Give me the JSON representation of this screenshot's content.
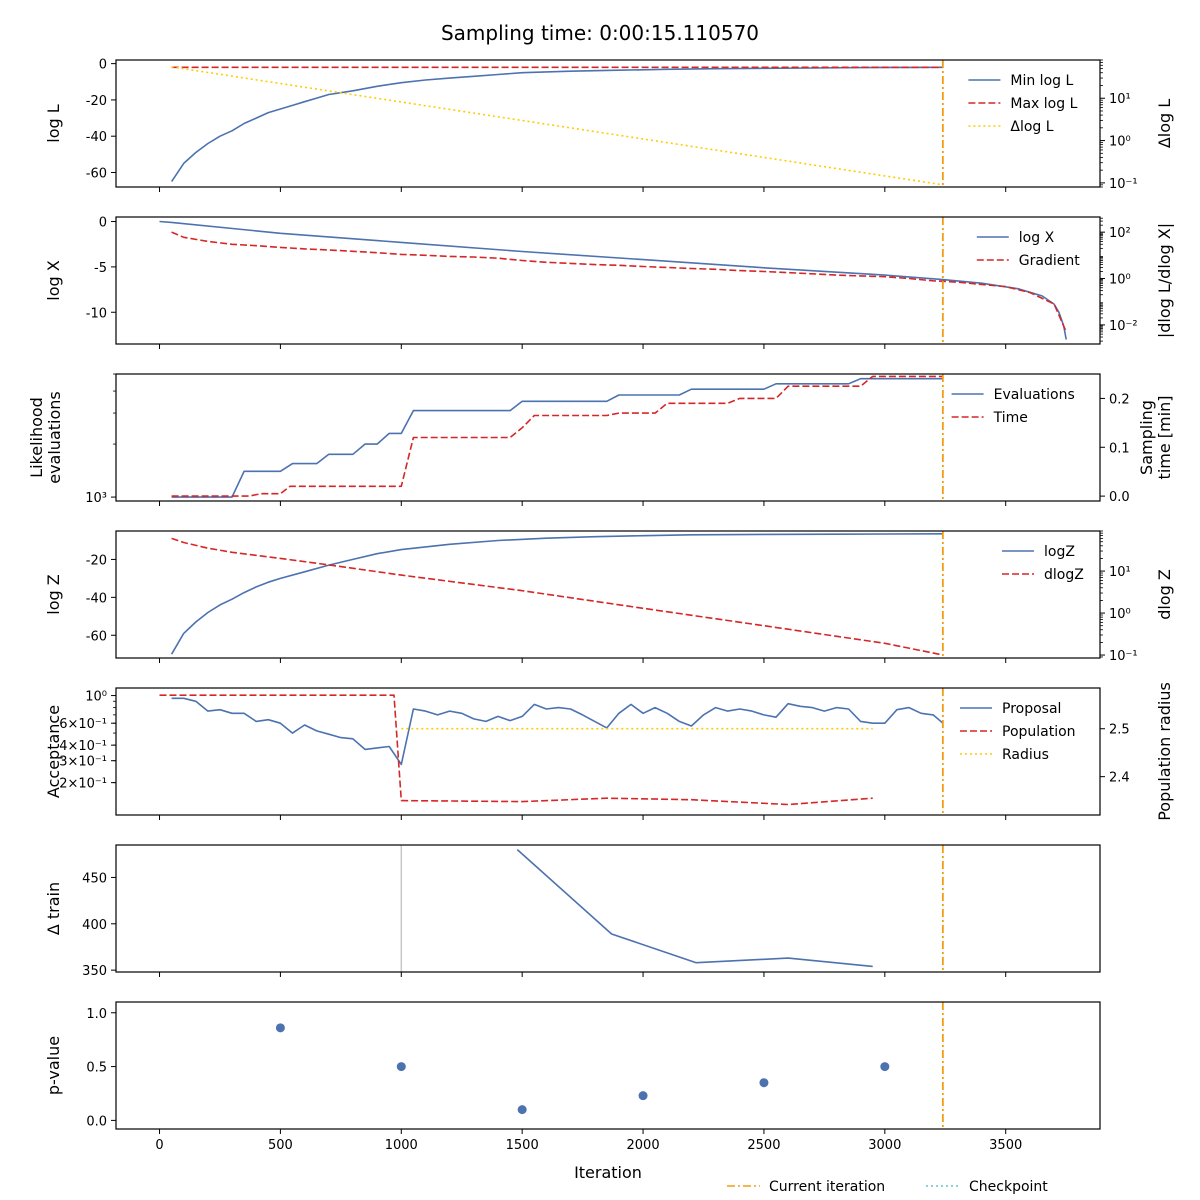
{
  "figure": {
    "title": "Sampling time: 0:00:15.110570",
    "xlabel": "Iteration",
    "xticks": [
      0,
      500,
      1000,
      1500,
      2000,
      2500,
      3000,
      3500
    ],
    "xlim": [
      -180,
      3890
    ],
    "current_iteration": 3240,
    "legend": [
      {
        "label": "Current iteration",
        "color": "#ff8c00",
        "style": "dashdot"
      },
      {
        "label": "Checkpoint",
        "color": "#66c2cc",
        "style": "dotted"
      }
    ]
  },
  "colors": {
    "blue": "#4c72b0",
    "red": "#d62728",
    "gold": "#ffcc00",
    "orange": "#f39c12",
    "gray": "#c8c8c8"
  },
  "chart_data": [
    {
      "type": "line",
      "id": "logl",
      "ylabel": "log L",
      "ylim": [
        -68,
        2
      ],
      "yticks": [
        0,
        -20,
        -40,
        -60
      ],
      "ylabel_right": "Δlog L",
      "right_scale": "log",
      "right_ylim": [
        0.08,
        80
      ],
      "right_ticks": [
        {
          "v": 10,
          "label": "10¹"
        },
        {
          "v": 1,
          "label": "10⁰"
        },
        {
          "v": 0.1,
          "label": "10⁻¹"
        }
      ],
      "series": [
        {
          "name": "Min log L",
          "axis": "left",
          "style": "solid",
          "color": "#4c72b0",
          "x": [
            50,
            100,
            150,
            200,
            250,
            300,
            350,
            400,
            450,
            500,
            550,
            600,
            650,
            700,
            750,
            800,
            900,
            1000,
            1100,
            1200,
            1300,
            1400,
            1500,
            1700,
            1900,
            2100,
            2300,
            2500,
            2700,
            2900,
            3100,
            3240
          ],
          "y": [
            -65,
            -55,
            -49,
            -44,
            -40,
            -37,
            -33,
            -30,
            -27,
            -25,
            -23,
            -21,
            -19,
            -17,
            -16,
            -15,
            -12.5,
            -10.5,
            -9,
            -8,
            -7,
            -6,
            -5,
            -4.2,
            -3.6,
            -3.1,
            -2.8,
            -2.6,
            -2.4,
            -2.2,
            -2.1,
            -2.0
          ]
        },
        {
          "name": "Max log L",
          "axis": "left",
          "style": "dashed",
          "color": "#d62728",
          "x": [
            50,
            3240
          ],
          "y": [
            -2,
            -2
          ]
        },
        {
          "name": "Δlog L",
          "axis": "right",
          "style": "dotted",
          "color": "#ffcc00",
          "x": [
            50,
            3240
          ],
          "y": [
            55,
            0.09
          ]
        }
      ]
    },
    {
      "type": "line",
      "id": "logx",
      "ylabel": "log X",
      "ylim": [
        -13.5,
        0.5
      ],
      "yticks": [
        0,
        -5,
        -10
      ],
      "ylabel_right": "|dlog L/dlog X|",
      "right_scale": "log",
      "right_ylim": [
        0.0015,
        450
      ],
      "right_ticks": [
        {
          "v": 100,
          "label": "10²"
        },
        {
          "v": 1,
          "label": "10⁰"
        },
        {
          "v": 0.01,
          "label": "10⁻²"
        }
      ],
      "series": [
        {
          "name": "log X",
          "axis": "left",
          "style": "solid",
          "color": "#4c72b0",
          "x": [
            0,
            50,
            500,
            1000,
            1500,
            2000,
            2500,
            3000,
            3240,
            3400,
            3550,
            3650,
            3700,
            3720,
            3740,
            3750
          ],
          "y": [
            0,
            -0.1,
            -1.3,
            -2.3,
            -3.3,
            -4.2,
            -5.1,
            -5.9,
            -6.4,
            -6.8,
            -7.4,
            -8.2,
            -9.1,
            -10,
            -11.5,
            -13
          ]
        },
        {
          "name": "Gradient",
          "axis": "right",
          "style": "dashed",
          "color": "#d62728",
          "x": [
            50,
            100,
            200,
            300,
            400,
            500,
            600,
            700,
            800,
            900,
            1000,
            1100,
            1200,
            1300,
            1400,
            1500,
            1600,
            1700,
            1800,
            1900,
            2000,
            2100,
            2200,
            2300,
            2400,
            2500,
            2600,
            2700,
            2800,
            2900,
            3000,
            3100,
            3200,
            3300,
            3400,
            3500,
            3600,
            3700,
            3750
          ],
          "y": [
            100,
            60,
            40,
            30,
            26,
            22,
            19,
            17,
            15,
            13,
            11,
            10,
            9,
            8.5,
            7.5,
            6,
            5,
            4.5,
            4,
            3.7,
            3.3,
            3,
            2.7,
            2.5,
            2.2,
            2,
            1.8,
            1.6,
            1.4,
            1.3,
            1.2,
            1.0,
            0.8,
            0.7,
            0.55,
            0.45,
            0.25,
            0.08,
            0.005
          ]
        }
      ]
    },
    {
      "type": "line",
      "id": "evals",
      "ylabel": "Likelihood evaluations",
      "ylabel_lines": [
        "Likelihood",
        "evaluations"
      ],
      "scale": "log",
      "ylim": [
        950,
        5000
      ],
      "yticks": [
        {
          "v": 1000,
          "label": "10³"
        }
      ],
      "ylabel_right": "Sampling time [min]",
      "ylabel_right_lines": [
        "Sampling",
        "time [min]"
      ],
      "right_ylim": [
        -0.01,
        0.25
      ],
      "right_ticks": [
        {
          "v": 0.0,
          "label": "0.0"
        },
        {
          "v": 0.1,
          "label": "0.1"
        },
        {
          "v": 0.2,
          "label": "0.2"
        }
      ],
      "series": [
        {
          "name": "Evaluations",
          "axis": "left",
          "style": "solid",
          "color": "#4c72b0",
          "x": [
            50,
            300,
            350,
            500,
            550,
            650,
            700,
            800,
            850,
            900,
            950,
            1000,
            1050,
            1450,
            1500,
            1850,
            1900,
            2150,
            2200,
            2500,
            2550,
            2850,
            2900,
            3240
          ],
          "y": [
            1000,
            1000,
            1400,
            1400,
            1550,
            1550,
            1750,
            1750,
            2000,
            2000,
            2300,
            2300,
            3100,
            3100,
            3500,
            3500,
            3800,
            3800,
            4100,
            4100,
            4400,
            4400,
            4700,
            4700
          ]
        },
        {
          "name": "Time",
          "axis": "right",
          "style": "dashed",
          "color": "#d62728",
          "x": [
            50,
            370,
            420,
            500,
            540,
            950,
            1000,
            1050,
            1450,
            1500,
            1550,
            1850,
            1900,
            2050,
            2100,
            2350,
            2400,
            2550,
            2600,
            2900,
            2950,
            3240
          ],
          "y": [
            0,
            0,
            0.005,
            0.005,
            0.02,
            0.02,
            0.02,
            0.12,
            0.12,
            0.14,
            0.165,
            0.165,
            0.17,
            0.17,
            0.19,
            0.19,
            0.2,
            0.2,
            0.225,
            0.225,
            0.245,
            0.245
          ]
        }
      ]
    },
    {
      "type": "line",
      "id": "logz",
      "ylabel": "log Z",
      "ylim": [
        -72,
        -5
      ],
      "yticks": [
        -20,
        -40,
        -60
      ],
      "ylabel_right": "dlog Z",
      "right_scale": "log",
      "right_ylim": [
        0.085,
        90
      ],
      "right_ticks": [
        {
          "v": 10,
          "label": "10¹"
        },
        {
          "v": 1,
          "label": "10⁰"
        },
        {
          "v": 0.1,
          "label": "10⁻¹"
        }
      ],
      "series": [
        {
          "name": "logZ",
          "axis": "left",
          "style": "solid",
          "color": "#4c72b0",
          "x": [
            50,
            100,
            150,
            200,
            250,
            300,
            350,
            400,
            450,
            500,
            600,
            700,
            800,
            900,
            1000,
            1200,
            1400,
            1600,
            1800,
            2000,
            2200,
            2500,
            2800,
            3240
          ],
          "y": [
            -70,
            -59,
            -53,
            -48,
            -44,
            -41,
            -37.5,
            -34.5,
            -32,
            -30,
            -26.5,
            -23,
            -20,
            -17,
            -14.8,
            -12,
            -10,
            -8.8,
            -8,
            -7.5,
            -7,
            -6.8,
            -6.7,
            -6.5
          ]
        },
        {
          "name": "dlogZ",
          "axis": "right",
          "style": "dashed",
          "color": "#d62728",
          "x": [
            50,
            100,
            200,
            300,
            500,
            700,
            1000,
            1500,
            2000,
            2500,
            3000,
            3240
          ],
          "y": [
            60,
            48,
            35,
            28,
            20,
            14,
            8,
            3.4,
            1.3,
            0.5,
            0.19,
            0.1
          ]
        }
      ]
    },
    {
      "type": "line",
      "id": "acceptance",
      "ylabel": "Acceptance",
      "scale": "log",
      "ylim": [
        0.11,
        1.15
      ],
      "yticks": [
        {
          "v": 1,
          "label": "10⁰"
        },
        {
          "v": 0.6,
          "label": "6×10⁻¹"
        },
        {
          "v": 0.4,
          "label": "4×10⁻¹"
        },
        {
          "v": 0.3,
          "label": "3×10⁻¹"
        },
        {
          "v": 0.2,
          "label": "2×10⁻¹"
        }
      ],
      "ylabel_right": "Population radius",
      "right_ylim": [
        2.32,
        2.585
      ],
      "right_ticks": [
        {
          "v": 2.5,
          "label": "2.5"
        },
        {
          "v": 2.4,
          "label": "2.4"
        }
      ],
      "series": [
        {
          "name": "Proposal",
          "axis": "left",
          "style": "solid",
          "color": "#4c72b0",
          "x": [
            50,
            100,
            150,
            200,
            250,
            300,
            350,
            400,
            450,
            500,
            550,
            600,
            650,
            700,
            750,
            800,
            850,
            900,
            950,
            1000,
            1050,
            1100,
            1150,
            1200,
            1250,
            1300,
            1350,
            1400,
            1450,
            1500,
            1550,
            1600,
            1650,
            1700,
            1750,
            1800,
            1850,
            1900,
            1950,
            2000,
            2050,
            2100,
            2150,
            2200,
            2250,
            2300,
            2350,
            2400,
            2450,
            2500,
            2550,
            2600,
            2650,
            2700,
            2750,
            2800,
            2850,
            2900,
            2950,
            3000,
            3050,
            3100,
            3150,
            3200,
            3240
          ],
          "y": [
            0.95,
            0.95,
            0.9,
            0.75,
            0.77,
            0.72,
            0.72,
            0.62,
            0.64,
            0.6,
            0.5,
            0.58,
            0.52,
            0.49,
            0.46,
            0.45,
            0.37,
            0.38,
            0.39,
            0.28,
            0.78,
            0.75,
            0.7,
            0.75,
            0.72,
            0.65,
            0.62,
            0.68,
            0.63,
            0.68,
            0.85,
            0.78,
            0.8,
            0.78,
            0.7,
            0.62,
            0.55,
            0.72,
            0.85,
            0.72,
            0.8,
            0.72,
            0.62,
            0.57,
            0.7,
            0.8,
            0.75,
            0.78,
            0.75,
            0.7,
            0.67,
            0.86,
            0.82,
            0.8,
            0.75,
            0.8,
            0.78,
            0.62,
            0.6,
            0.6,
            0.77,
            0.8,
            0.72,
            0.7,
            0.6
          ]
        },
        {
          "name": "Population",
          "axis": "right",
          "style": "dashed",
          "color": "#d62728",
          "x": [
            0,
            970,
            1000,
            1500,
            1850,
            2200,
            2600,
            2950
          ],
          "y": [
            2.57,
            2.57,
            2.35,
            2.348,
            2.355,
            2.352,
            2.342,
            2.355
          ]
        },
        {
          "name": "Radius",
          "axis": "right",
          "style": "dotted",
          "color": "#ffcc00",
          "x": [
            1000,
            2950
          ],
          "y": [
            2.5,
            2.5
          ]
        }
      ]
    },
    {
      "type": "line",
      "id": "train",
      "ylabel": "Δ train",
      "ylim": [
        348,
        485
      ],
      "yticks": [
        450,
        400,
        350
      ],
      "vlines": [
        1000
      ],
      "series": [
        {
          "name": "",
          "axis": "left",
          "style": "solid",
          "color": "#4c72b0",
          "x": [
            1480,
            1870,
            2220,
            2600,
            2950
          ],
          "y": [
            480,
            389,
            358,
            363,
            354
          ]
        }
      ]
    },
    {
      "type": "scatter",
      "id": "pvalue",
      "ylabel": "p-value",
      "ylim": [
        -0.08,
        1.1
      ],
      "yticks": [
        {
          "v": 1.0,
          "label": "1.0"
        },
        {
          "v": 0.5,
          "label": "0.5"
        },
        {
          "v": 0.0,
          "label": "0.0"
        }
      ],
      "series": [
        {
          "name": "",
          "axis": "left",
          "style": "marker",
          "color": "#4c72b0",
          "x": [
            500,
            1000,
            1500,
            2000,
            2500,
            3000
          ],
          "y": [
            0.86,
            0.5,
            0.1,
            0.23,
            0.35,
            0.5
          ]
        }
      ]
    }
  ]
}
